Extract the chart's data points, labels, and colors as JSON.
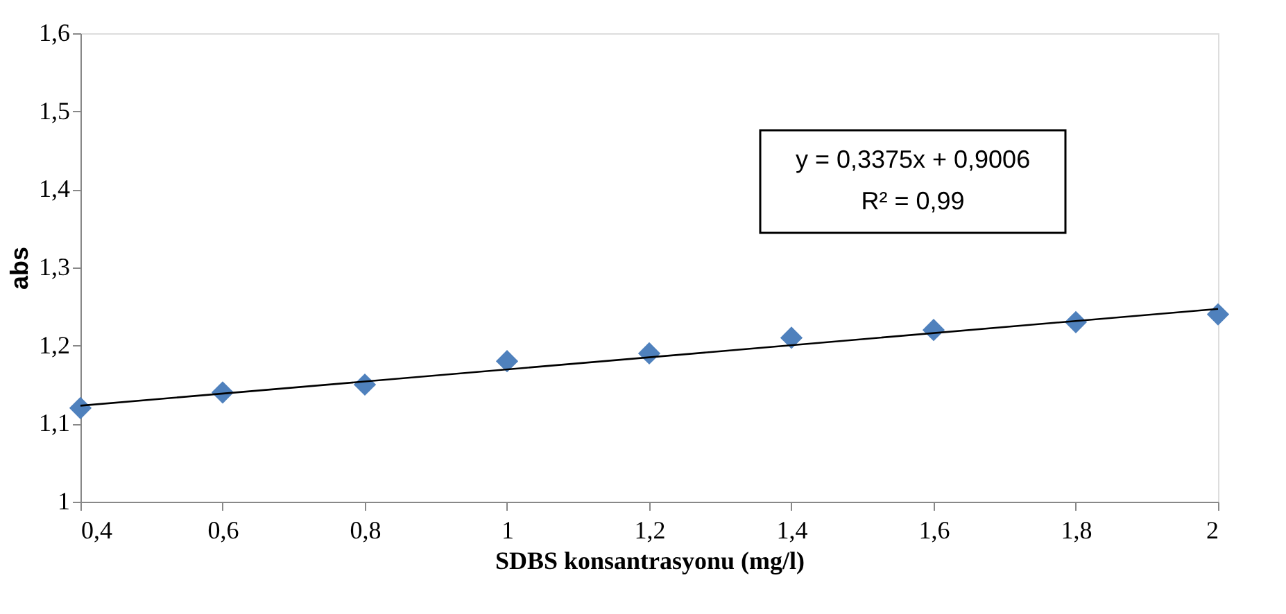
{
  "chart_data": {
    "type": "scatter",
    "xlabel": "SDBS konsantrasyonu (mg/l)",
    "ylabel": "abs",
    "x": [
      0.4,
      0.6,
      0.8,
      1,
      1.2,
      1.4,
      1.6,
      1.8,
      2
    ],
    "series": [
      {
        "color": "#4f81bd",
        "marker": "diamond",
        "values": [
          1.12,
          1.14,
          1.15,
          1.18,
          1.19,
          1.21,
          1.22,
          1.23,
          1.24
        ]
      },
      {
        "type": "line",
        "color": "#000000",
        "line_style": "solid",
        "x": [
          0.4,
          2
        ],
        "values": [
          1.123,
          1.247
        ]
      }
    ],
    "xlim": [
      0.4,
      2
    ],
    "ylim": [
      1,
      1.6
    ],
    "xticks": [
      {
        "value": 0.4,
        "label": "0,4"
      },
      {
        "value": 0.6,
        "label": "0,6"
      },
      {
        "value": 0.8,
        "label": "0,8"
      },
      1,
      {
        "value": 1.2,
        "label": "1,2"
      },
      {
        "value": 1.4,
        "label": "1,4"
      },
      {
        "value": 1.6,
        "label": "1,6"
      },
      {
        "value": 1.8,
        "label": "1,8"
      },
      2
    ],
    "yticks": [
      1,
      {
        "value": 1.1,
        "label": "1,1"
      },
      {
        "value": 1.2,
        "label": "1,2"
      },
      {
        "value": 1.3,
        "label": "1,3"
      },
      {
        "value": 1.4,
        "label": "1,4"
      },
      {
        "value": 1.5,
        "label": "1,5"
      },
      {
        "value": 1.6,
        "label": "1,6"
      }
    ],
    "annotations": [
      "y = 0,3375x + 0,9006",
      "R² = 0,99"
    ],
    "grid": false
  }
}
